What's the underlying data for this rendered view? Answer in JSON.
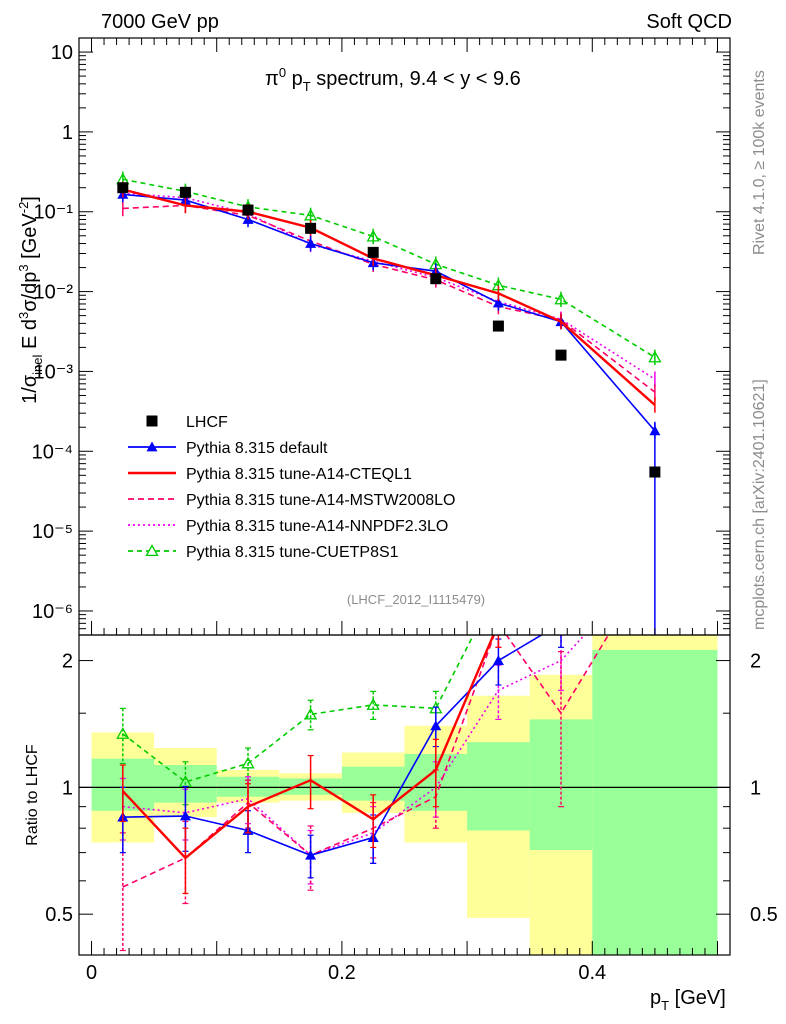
{
  "header": {
    "left": "7000 GeV pp",
    "right": "Soft QCD"
  },
  "side_labels": {
    "rivet": "Rivet 4.1.0, ≥ 100k events",
    "mcplots": "mcplots.cern.ch [arXiv:2401.10621]"
  },
  "analysis_id": "(LHCF_2012_I1115479)",
  "chart_data": {
    "type": "line",
    "title": "π⁰ p_T spectrum, 9.4 < y < 9.6",
    "xlabel": "p_T [GeV]",
    "ylabel": "1/σ_inel E d³σ/dp³ [GeV⁻²]",
    "ratio_ylabel": "Ratio to LHCF",
    "xlim": [
      -0.01,
      0.51
    ],
    "ylim_main": [
      5e-07,
      15
    ],
    "ylim_ratio": [
      0.4,
      2.3
    ],
    "x": [
      0.025,
      0.075,
      0.125,
      0.175,
      0.225,
      0.275,
      0.325,
      0.375,
      0.45
    ],
    "bin_edges": [
      0,
      0.05,
      0.1,
      0.15,
      0.2,
      0.25,
      0.3,
      0.35,
      0.4,
      0.5
    ],
    "x_ticks": [
      "0",
      "0.2",
      "0.4"
    ],
    "y_ticks_main": [
      "10⁻⁶",
      "10⁻⁵",
      "10⁻⁴",
      "10⁻³",
      "10⁻²",
      "10⁻¹",
      "1",
      "10"
    ],
    "y_ticks_ratio": [
      "0.5",
      "1",
      "2"
    ],
    "data": {
      "name": "LHCF",
      "values": [
        0.2,
        0.175,
        0.105,
        0.062,
        0.031,
        0.0145,
        0.0037,
        0.0016,
        5.5e-05
      ],
      "band_green": [
        [
          0.88,
          1.17
        ],
        [
          0.92,
          1.13
        ],
        [
          0.95,
          1.06
        ],
        [
          0.96,
          1.05
        ],
        [
          0.93,
          1.12
        ],
        [
          0.88,
          1.2
        ],
        [
          0.79,
          1.28
        ],
        [
          0.71,
          1.45
        ],
        [
          0.35,
          2.12
        ]
      ],
      "band_yellow": [
        [
          0.74,
          1.35
        ],
        [
          0.85,
          1.24
        ],
        [
          0.92,
          1.1
        ],
        [
          0.93,
          1.08
        ],
        [
          0.87,
          1.21
        ],
        [
          0.74,
          1.4
        ],
        [
          0.49,
          1.65
        ],
        [
          0.35,
          1.85
        ],
        [
          0.35,
          2.3
        ]
      ]
    },
    "series": [
      {
        "name": "Pythia 8.315 default",
        "color": "#0000ff",
        "dash": "solid",
        "marker": "triangle-filled",
        "values": [
          0.165,
          0.14,
          0.08,
          0.04,
          0.023,
          0.018,
          0.0072,
          0.0042,
          0.00018
        ],
        "ratio": [
          0.85,
          0.855,
          0.79,
          0.69,
          0.76,
          1.4,
          2.0,
          2.45,
          3.5
        ],
        "ratio_err": [
          0.15,
          0.15,
          0.09,
          0.08,
          0.1,
          0.15,
          0.25,
          0.3,
          0
        ]
      },
      {
        "name": "Pythia 8.315 tune-A14-CTEQL1",
        "color": "#ff0000",
        "dash": "solid",
        "marker": "none",
        "values": [
          0.19,
          0.12,
          0.1,
          0.063,
          0.026,
          0.016,
          0.0095,
          0.0042,
          0.00038
        ],
        "ratio": [
          0.98,
          0.68,
          0.9,
          1.04,
          0.84,
          1.1,
          2.45,
          3.0,
          3.5
        ],
        "ratio_err": [
          0.15,
          0.12,
          0.12,
          0.15,
          0.12,
          0.2,
          0.3,
          0.3,
          0
        ]
      },
      {
        "name": "Pythia 8.315 tune-A14-MSTW2008LO",
        "color": "#ff0066",
        "dash": "6,4",
        "marker": "none",
        "values": [
          0.11,
          0.12,
          0.09,
          0.043,
          0.022,
          0.014,
          0.0065,
          0.0044,
          0.00055
        ],
        "ratio": [
          0.58,
          0.68,
          0.92,
          0.69,
          0.8,
          0.95,
          2.45,
          1.5,
          3.5
        ],
        "ratio_err": [
          0.2,
          0.15,
          0.12,
          0.12,
          0.12,
          0.15,
          0.3,
          0.6,
          0
        ]
      },
      {
        "name": "Pythia 8.315 tune-A14-NNPDF2.3LO",
        "color": "#ee00ee",
        "dash": "2,3",
        "marker": "none",
        "values": [
          0.17,
          0.15,
          0.095,
          0.039,
          0.024,
          0.015,
          0.0075,
          0.0045,
          0.0008
        ],
        "ratio": [
          0.9,
          0.87,
          0.94,
          0.69,
          0.78,
          1.0,
          1.7,
          2.0,
          3.5
        ],
        "ratio_err": [
          0.15,
          0.12,
          0.12,
          0.1,
          0.12,
          0.15,
          0.25,
          0.3,
          0
        ]
      },
      {
        "name": "Pythia 8.315 tune-CUETP8S1",
        "color": "#00cc00",
        "dash": "5,4",
        "marker": "triangle-open",
        "values": [
          0.255,
          0.18,
          0.115,
          0.09,
          0.049,
          0.022,
          0.012,
          0.008,
          0.0015
        ],
        "ratio": [
          1.34,
          1.03,
          1.14,
          1.49,
          1.57,
          1.54,
          3.0,
          3.5,
          3.5
        ],
        "ratio_err": [
          0.2,
          0.12,
          0.1,
          0.12,
          0.12,
          0.15,
          0.3,
          0,
          0
        ]
      }
    ]
  }
}
